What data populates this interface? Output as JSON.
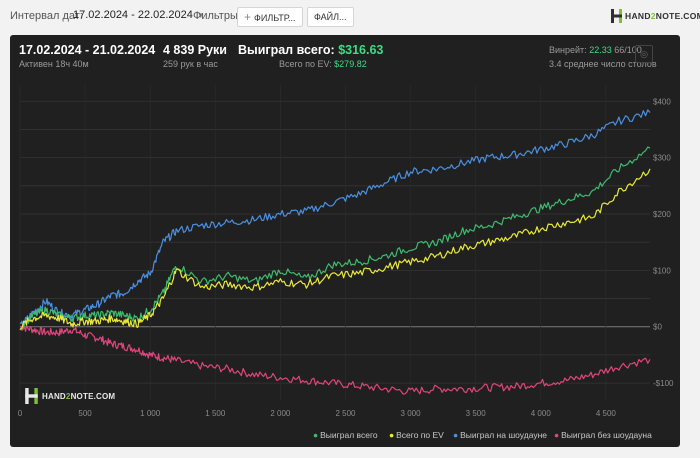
{
  "topbar": {
    "interval_label": "Интервал дат:",
    "interval_value": "17.02.2024 - 22.02.2024",
    "filters_label": "Фильтры:",
    "filters_button": "ФИЛЬТР...",
    "file_button": "ФАЙЛ...",
    "logo_part1": "HAND",
    "logo_part2": "2",
    "logo_part3": "NOTE.COM"
  },
  "summary": {
    "date_range": "17.02.2024 - 21.02.2024",
    "active": "Активен 18ч 40м",
    "hands": "4 839 Руки",
    "hands_per_hour": "259 рук в час",
    "won_label": "Выиграл всего:",
    "won_value": "$316.63",
    "ev_label": "Всего по EV:",
    "ev_value": "$279.82",
    "winrate_label": "Винрейт:",
    "winrate_value": "22.33",
    "winrate_suffix": "66/100",
    "tables": "3.4 среднее число столов"
  },
  "watermark": {
    "part1": "HAND",
    "part2": "2",
    "part3": "NOTE.COM"
  },
  "chart_data": {
    "type": "line",
    "x_range": [
      0,
      4839
    ],
    "ylim": [
      -130,
      420
    ],
    "x_ticks": [
      0,
      500,
      1000,
      1500,
      2000,
      2500,
      3000,
      3500,
      4000,
      4500
    ],
    "x_tick_labels": [
      "0",
      "500",
      "1 000",
      "1 500",
      "2 000",
      "2 500",
      "3 000",
      "3 500",
      "4 000",
      "4 500"
    ],
    "y_ticks": [
      400,
      300,
      200,
      100,
      0,
      -100
    ],
    "y_tick_labels": [
      "$400",
      "$300",
      "$200",
      "$100",
      "$0",
      "-$100"
    ],
    "series": [
      {
        "name": "Выиграл на шоудауне",
        "color": "#4a90e2",
        "x": [
          0,
          100,
          200,
          300,
          400,
          500,
          600,
          700,
          800,
          900,
          1000,
          1100,
          1200,
          1400,
          1600,
          1800,
          2000,
          2200,
          2400,
          2600,
          2800,
          3000,
          3200,
          3400,
          3600,
          3800,
          4000,
          4200,
          4400,
          4600,
          4839
        ],
        "y": [
          0,
          25,
          45,
          25,
          20,
          30,
          40,
          55,
          60,
          80,
          95,
          150,
          170,
          180,
          185,
          190,
          200,
          205,
          220,
          235,
          255,
          275,
          280,
          290,
          300,
          305,
          315,
          325,
          340,
          365,
          380
        ]
      },
      {
        "name": "Выиграл всего",
        "color": "#3dbb6d",
        "x": [
          0,
          100,
          200,
          300,
          400,
          500,
          600,
          700,
          800,
          900,
          1000,
          1100,
          1200,
          1400,
          1600,
          1800,
          2000,
          2200,
          2400,
          2600,
          2800,
          3000,
          3200,
          3400,
          3600,
          3800,
          4000,
          4200,
          4400,
          4600,
          4839
        ],
        "y": [
          0,
          20,
          30,
          20,
          15,
          20,
          20,
          25,
          20,
          15,
          30,
          60,
          110,
          80,
          90,
          80,
          100,
          85,
          110,
          115,
          125,
          140,
          150,
          170,
          180,
          195,
          210,
          225,
          240,
          280,
          317
        ]
      },
      {
        "name": "Всего по EV",
        "color": "#e8e83a",
        "x": [
          0,
          100,
          200,
          300,
          400,
          500,
          600,
          700,
          800,
          900,
          1000,
          1100,
          1200,
          1400,
          1600,
          1800,
          2000,
          2200,
          2400,
          2600,
          2800,
          3000,
          3200,
          3400,
          3600,
          3800,
          4000,
          4200,
          4400,
          4600,
          4839
        ],
        "y": [
          0,
          15,
          20,
          15,
          5,
          10,
          10,
          15,
          10,
          5,
          20,
          50,
          100,
          70,
          75,
          70,
          80,
          75,
          90,
          95,
          105,
          115,
          125,
          140,
          150,
          160,
          175,
          185,
          195,
          240,
          280
        ]
      },
      {
        "name": "Выиграл без шоудауна",
        "color": "#e0457b",
        "x": [
          0,
          100,
          200,
          300,
          400,
          500,
          600,
          700,
          800,
          900,
          1000,
          1100,
          1200,
          1400,
          1600,
          1800,
          2000,
          2200,
          2400,
          2600,
          2800,
          3000,
          3200,
          3400,
          3600,
          3800,
          4000,
          4200,
          4400,
          4600,
          4839
        ],
        "y": [
          0,
          -5,
          -10,
          -10,
          -5,
          -15,
          -20,
          -30,
          -35,
          -40,
          -50,
          -55,
          -60,
          -70,
          -75,
          -85,
          -90,
          -95,
          -100,
          -105,
          -110,
          -115,
          -110,
          -110,
          -108,
          -106,
          -100,
          -95,
          -85,
          -70,
          -58
        ]
      }
    ]
  },
  "legend": [
    {
      "label": "Выиграл всего",
      "color": "#3dbb6d"
    },
    {
      "label": "Всего по EV",
      "color": "#e8e83a"
    },
    {
      "label": "Выиграл на шоудауне",
      "color": "#4a90e2"
    },
    {
      "label": "Выиграл без шоудауна",
      "color": "#e0457b"
    }
  ]
}
